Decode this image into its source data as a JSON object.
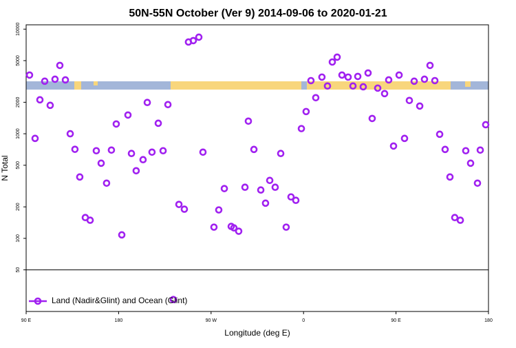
{
  "chart_data": {
    "type": "scatter",
    "title": "50N-55N October (Ver 9)   2014-09-06 to 2020-01-21",
    "x_label": "Longitude (deg E)",
    "y_label": "N Total",
    "xlim": [
      90,
      540
    ],
    "xticks": [
      {
        "value": 90,
        "label": "90 E"
      },
      180,
      {
        "value": 270,
        "label": "90 W"
      },
      {
        "value": 360,
        "label": "0"
      },
      {
        "value": 450,
        "label": "90 E"
      },
      {
        "value": 540,
        "label": "180"
      }
    ],
    "ylim": [
      20,
      11000
    ],
    "y_log": true,
    "yticks": [
      50,
      100,
      200,
      500,
      1000,
      2000,
      5000,
      10000
    ],
    "reference_line": 50,
    "legend": "bottom-left",
    "series": [
      {
        "name": "Land (Nadir&Glint) and Ocean (Glint)",
        "color": "#a020f0",
        "x": [
          93.3,
          98.7,
          103.4,
          108.1,
          113.4,
          118.1,
          122.8,
          128.2,
          132.9,
          137.5,
          142.2,
          147.6,
          152.3,
          158.3,
          163.0,
          168.3,
          173.0,
          177.7,
          183.1,
          189.1,
          192.5,
          197.1,
          203.8,
          207.9,
          212.5,
          218.6,
          223.3,
          228.0,
          238.7,
          244.0,
          248.0,
          252.7,
          258.1,
          262.1,
          272.8,
          277.5,
          282.9,
          289.6,
          292.2,
          296.9,
          303.0,
          306.3,
          311.7,
          318.4,
          323.0,
          327.1,
          332.4,
          337.8,
          343.1,
          347.8,
          352.5,
          357.9,
          362.5,
          367.2,
          371.9,
          377.9,
          383.3,
          388.0,
          392.7,
          397.4,
          403.4,
          408.1,
          412.8,
          418.1,
          422.8,
          426.8,
          432.2,
          438.9,
          442.9,
          447.6,
          453.0,
          458.3,
          463.0,
          467.7,
          473.1,
          477.7,
          483.1,
          487.8,
          492.5,
          497.8,
          502.5,
          507.2,
          512.6,
          517.9,
          522.6,
          529.3,
          532.0,
          537.3,
          233.3
        ],
        "values": [
          3640,
          903,
          2110,
          3180,
          1870,
          3320,
          4500,
          3270,
          1000,
          710,
          386,
          158,
          149,
          688,
          523,
          337,
          698,
          1240,
          108,
          1510,
          648,
          443,
          565,
          1990,
          667,
          1260,
          688,
          1900,
          211,
          190,
          7530,
          7770,
          8380,
          667,
          128,
          187,
          299,
          130,
          126,
          117,
          308,
          1320,
          708,
          290,
          217,
          358,
          308,
          648,
          128,
          249,
          231,
          1120,
          1630,
          3220,
          2210,
          3480,
          2860,
          4850,
          5400,
          3640,
          3480,
          2860,
          3530,
          2810,
          3810,
          1400,
          2730,
          2420,
          3270,
          763,
          3640,
          903,
          2080,
          3180,
          1840,
          3320,
          4500,
          3220,
          989,
          708,
          386,
          158,
          149,
          688,
          523,
          337,
          698,
          1220,
          26
        ]
      }
    ]
  }
}
